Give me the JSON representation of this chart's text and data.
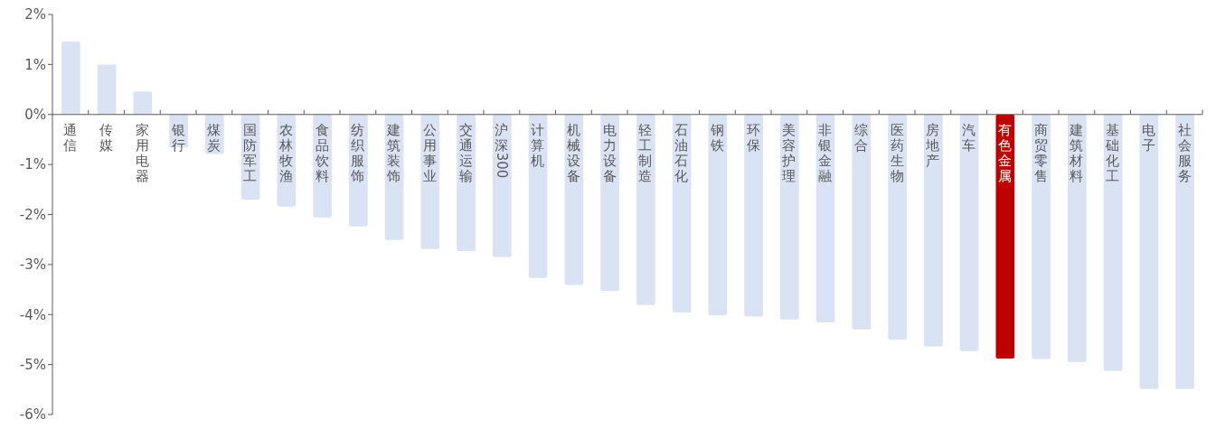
{
  "chart_data": {
    "type": "bar",
    "categories": [
      "通信",
      "传媒",
      "家用电器",
      "银行",
      "煤炭",
      "国防军工",
      "农林牧渔",
      "食品饮料",
      "纺织服饰",
      "建筑装饰",
      "公用事业",
      "交通运输",
      "沪深300",
      "计算机",
      "机械设备",
      "电力设备",
      "轻工制造",
      "石油石化",
      "钢铁",
      "环保",
      "美容护理",
      "非银金融",
      "综合",
      "医药生物",
      "房地产",
      "汽车",
      "有色金属",
      "商贸零售",
      "建筑材料",
      "基础化工",
      "电子",
      "社会服务"
    ],
    "values": [
      1.46,
      1.0,
      0.46,
      -0.66,
      -0.79,
      -1.7,
      -1.84,
      -2.06,
      -2.24,
      -2.51,
      -2.69,
      -2.73,
      -2.85,
      -3.27,
      -3.41,
      -3.53,
      -3.81,
      -3.96,
      -4.02,
      -4.04,
      -4.1,
      -4.16,
      -4.3,
      -4.5,
      -4.64,
      -4.73,
      -4.88,
      -4.89,
      -4.95,
      -5.13,
      -5.49,
      -5.49
    ],
    "colors": [
      "#dae3f3",
      "#dae3f3",
      "#dae3f3",
      "#dae3f3",
      "#dae3f3",
      "#dae3f3",
      "#dae3f3",
      "#dae3f3",
      "#dae3f3",
      "#dae3f3",
      "#dae3f3",
      "#dae3f3",
      "#dae3f3",
      "#dae3f3",
      "#dae3f3",
      "#dae3f3",
      "#dae3f3",
      "#dae3f3",
      "#dae3f3",
      "#dae3f3",
      "#dae3f3",
      "#dae3f3",
      "#dae3f3",
      "#dae3f3",
      "#dae3f3",
      "#dae3f3",
      "#c00000",
      "#dae3f3",
      "#dae3f3",
      "#dae3f3",
      "#dae3f3",
      "#dae3f3"
    ],
    "ylim": [
      -6,
      2
    ],
    "yticks": [
      {
        "value": -6,
        "label": "-6%"
      },
      {
        "value": -5,
        "label": "-5%"
      },
      {
        "value": -4,
        "label": "-4%"
      },
      {
        "value": -3,
        "label": "-3%"
      },
      {
        "value": -2,
        "label": "-2%"
      },
      {
        "value": -1,
        "label": "-1%"
      },
      {
        "value": 0,
        "label": "0%"
      },
      {
        "value": 1,
        "label": "1%"
      },
      {
        "value": 2,
        "label": "2%"
      }
    ],
    "grid": false,
    "legend": false
  }
}
